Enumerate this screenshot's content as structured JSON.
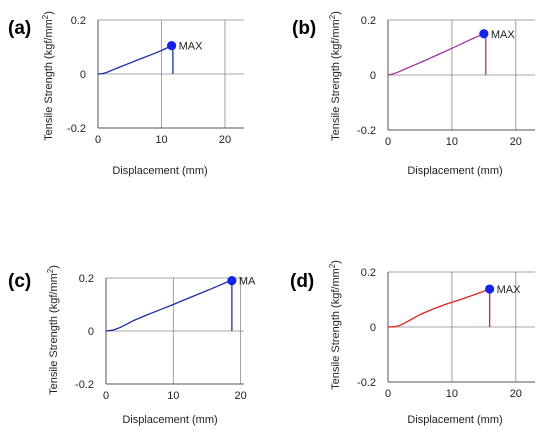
{
  "figure": {
    "panels": [
      {
        "id": "a",
        "label": "(a)"
      },
      {
        "id": "b",
        "label": "(b)"
      },
      {
        "id": "c",
        "label": "(c)"
      },
      {
        "id": "d",
        "label": "(d)"
      }
    ]
  },
  "chart_data": [
    {
      "type": "line",
      "panel": "(a)",
      "xlabel": "Displacement (mm)",
      "ylabel": "Tensile Strength (kgf/mm²)",
      "ylabel_main": "Tensile Strength (kgf/mm",
      "ylabel_sup": "2",
      "ylabel_end": ")",
      "xlim": [
        0,
        23
      ],
      "ylim": [
        -0.2,
        0.2
      ],
      "xticks": [
        0,
        10,
        20
      ],
      "yticks": [
        -0.2,
        0,
        0.2
      ],
      "xtick_labels": [
        "0",
        "10",
        "20"
      ],
      "ytick_labels": [
        "-0.2",
        "0",
        "0.2"
      ],
      "grid": true,
      "color": "#1a2fa6",
      "series": [
        {
          "x": [
            0,
            0.8,
            1.5,
            2.2,
            3,
            4,
            5,
            6,
            7,
            8,
            9,
            10,
            11,
            11.6
          ],
          "y": [
            0,
            0.002,
            0.007,
            0.014,
            0.022,
            0.031,
            0.04,
            0.05,
            0.059,
            0.068,
            0.077,
            0.087,
            0.098,
            0.105
          ]
        }
      ],
      "max_point": {
        "x": 11.6,
        "y": 0.105,
        "label": "MAX"
      },
      "drop": {
        "x": 11.8,
        "y_from": 0.1,
        "y_to": 0
      }
    },
    {
      "type": "line",
      "panel": "(b)",
      "xlabel": "Displacement (mm)",
      "ylabel": "Tensile Strength (kgf/mm²)",
      "ylabel_main": "Tensile Strength (kgf/mm",
      "ylabel_sup": "2",
      "ylabel_end": ")",
      "xlim": [
        0,
        23
      ],
      "ylim": [
        -0.2,
        0.2
      ],
      "xticks": [
        0,
        10,
        20
      ],
      "yticks": [
        -0.2,
        0,
        0.2
      ],
      "xtick_labels": [
        "0",
        "10",
        "20"
      ],
      "ytick_labels": [
        "-0.2",
        "0",
        "0.2"
      ],
      "grid": true,
      "color": "#9a3a9a",
      "series": [
        {
          "x": [
            0,
            0.8,
            1.5,
            2.5,
            4,
            6,
            8,
            10,
            12,
            13.5,
            15
          ],
          "y": [
            0,
            0.004,
            0.01,
            0.02,
            0.035,
            0.055,
            0.076,
            0.097,
            0.119,
            0.135,
            0.15
          ]
        }
      ],
      "max_point": {
        "x": 15,
        "y": 0.15,
        "label": "MAX"
      },
      "drop": {
        "x": 15.3,
        "y_from": 0.145,
        "y_to": 0
      }
    },
    {
      "type": "line",
      "panel": "(c)",
      "xlabel": "Displacement (mm)",
      "ylabel": "Tensile Strength (kgf/mm²)",
      "ylabel_main": "Tensile Strength (kgf/mm",
      "ylabel_sup": "2",
      "ylabel_end": ")",
      "xlim": [
        0,
        20.5
      ],
      "ylim": [
        -0.2,
        0.2
      ],
      "xticks": [
        0,
        10,
        20
      ],
      "yticks": [
        -0.2,
        0,
        0.2
      ],
      "xtick_labels": [
        "0",
        "10",
        "20"
      ],
      "ytick_labels": [
        "-0.2",
        "0",
        "0.2"
      ],
      "grid": true,
      "color": "#1a2fa6",
      "series": [
        {
          "x": [
            0,
            1,
            2,
            3,
            4,
            6,
            8,
            10,
            12,
            14,
            16,
            18,
            18.7
          ],
          "y": [
            0,
            0.003,
            0.012,
            0.025,
            0.038,
            0.06,
            0.08,
            0.1,
            0.121,
            0.142,
            0.163,
            0.185,
            0.19
          ]
        }
      ],
      "max_point": {
        "x": 18.7,
        "y": 0.19,
        "label": "MA"
      },
      "drop": {
        "x": 18.7,
        "y_from": 0.19,
        "y_to": 0
      }
    },
    {
      "type": "line",
      "panel": "(d)",
      "xlabel": "Displacement (mm)",
      "ylabel": "Tensile Strength (kgf/mm²)",
      "ylabel_main": "Tensile Strength (kgf/mm",
      "ylabel_sup": "2",
      "ylabel_end": ")",
      "xlim": [
        0,
        23
      ],
      "ylim": [
        -0.2,
        0.2
      ],
      "xticks": [
        0,
        10,
        20
      ],
      "yticks": [
        -0.2,
        0,
        0.2
      ],
      "xtick_labels": [
        "0",
        "10",
        "20"
      ],
      "ytick_labels": [
        "-0.2",
        "0",
        "0.2"
      ],
      "grid": true,
      "color": "#e02020",
      "series": [
        {
          "x": [
            0,
            1,
            1.8,
            2.5,
            3.5,
            5,
            7,
            9,
            11,
            13,
            14.5,
            15.9
          ],
          "y": [
            0,
            0.001,
            0.005,
            0.013,
            0.026,
            0.045,
            0.065,
            0.082,
            0.097,
            0.113,
            0.126,
            0.138
          ]
        }
      ],
      "max_point": {
        "x": 15.9,
        "y": 0.138,
        "label": "MAX"
      },
      "drop": {
        "x": 15.9,
        "y_from": 0.138,
        "y_to": 0
      }
    }
  ]
}
